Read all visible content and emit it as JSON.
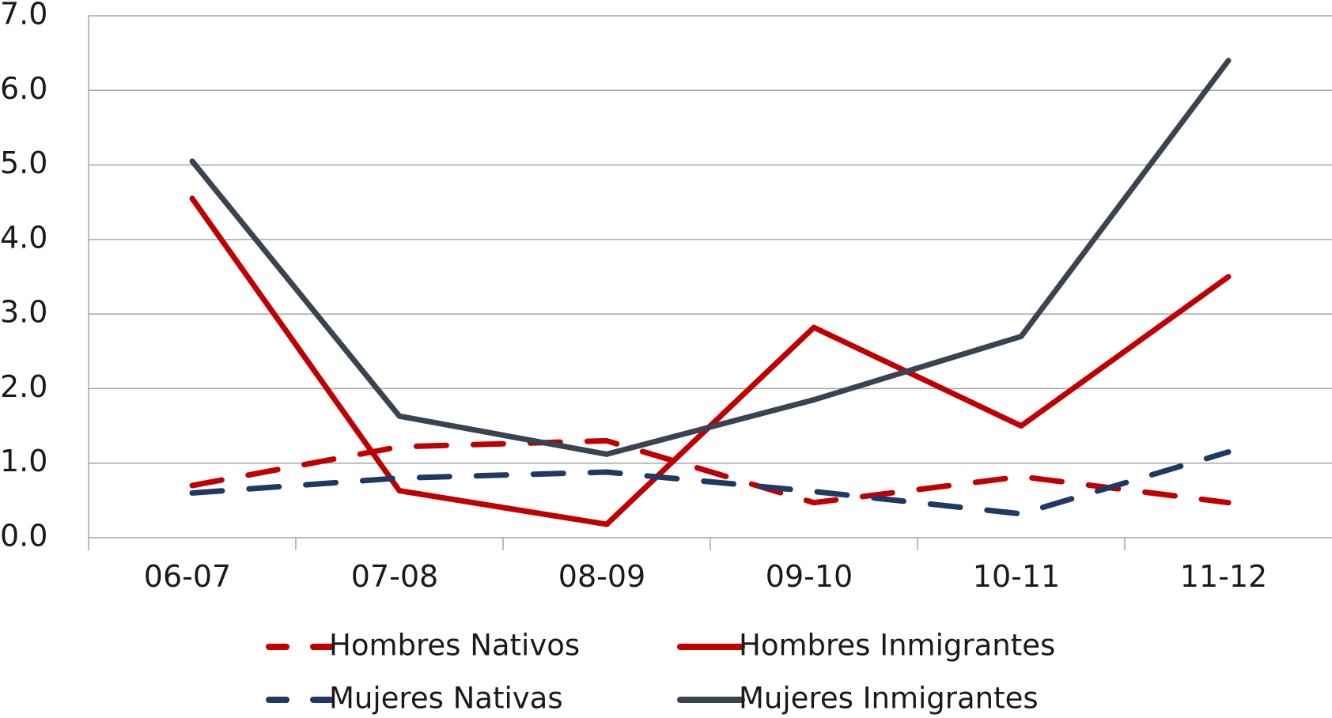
{
  "chart_data": {
    "type": "line",
    "title": "",
    "xlabel": "",
    "ylabel": "",
    "categories": [
      "06-07",
      "07-08",
      "08-09",
      "09-10",
      "10-11",
      "11-12"
    ],
    "ylim": [
      0,
      7
    ],
    "yticks": [
      "0.0",
      "1.0",
      "2.0",
      "3.0",
      "4.0",
      "5.0",
      "6.0",
      "7.0"
    ],
    "grid": true,
    "legend_position": "bottom",
    "series": [
      {
        "name": "Hombres Nativos",
        "values": [
          0.7,
          1.22,
          1.3,
          0.47,
          0.82,
          0.47
        ],
        "color": "#c00000",
        "style": "dashed"
      },
      {
        "name": "Hombres Inmigrantes",
        "values": [
          4.55,
          0.63,
          0.18,
          2.82,
          1.5,
          3.5
        ],
        "color": "#c00000",
        "style": "solid"
      },
      {
        "name": "Mujeres Nativas",
        "values": [
          0.6,
          0.8,
          0.88,
          0.62,
          0.32,
          1.15
        ],
        "color": "#1f3864",
        "style": "dashed"
      },
      {
        "name": "Mujeres Inmigrantes",
        "values": [
          5.05,
          1.63,
          1.12,
          1.85,
          2.7,
          6.4
        ],
        "color": "#3a4350",
        "style": "solid"
      }
    ]
  }
}
